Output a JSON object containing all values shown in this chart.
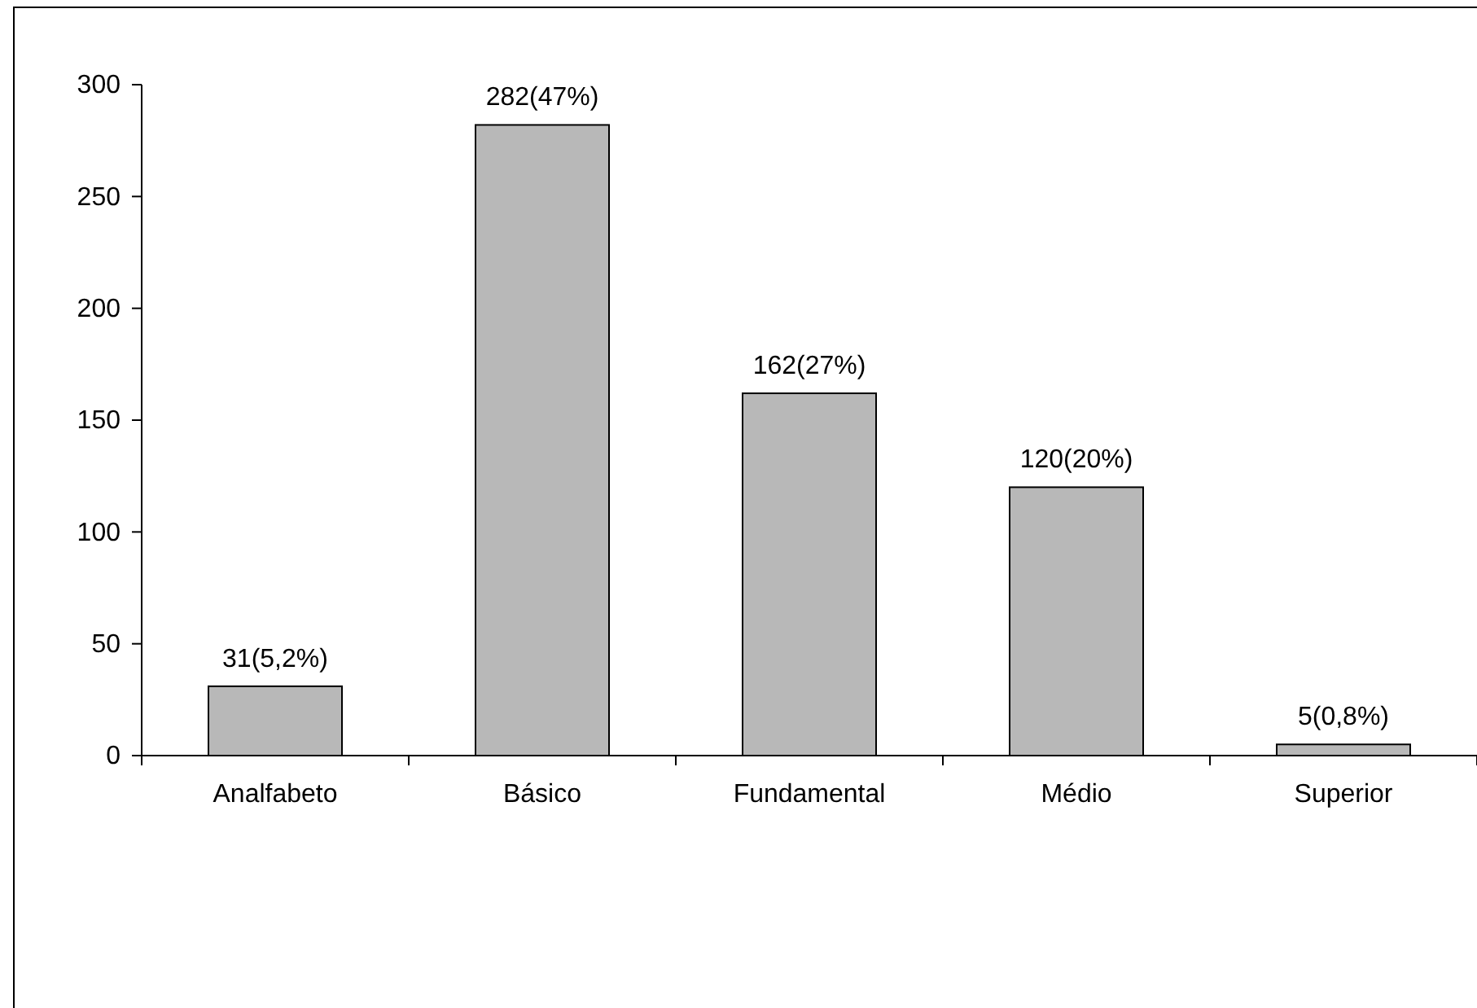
{
  "chart_data": {
    "type": "bar",
    "categories": [
      "Analfabeto",
      "Básico",
      "Fundamental",
      "Médio",
      "Superior"
    ],
    "values": [
      31,
      282,
      162,
      120,
      5
    ],
    "value_labels": [
      "31(5,2%)",
      "282(47%)",
      "162(27%)",
      "120(20%)",
      "5(0,8%)"
    ],
    "color": "#b8b8b8",
    "ylim": [
      0,
      300
    ],
    "yticks": [
      0,
      50,
      100,
      150,
      200,
      250,
      300
    ],
    "grid": false
  }
}
